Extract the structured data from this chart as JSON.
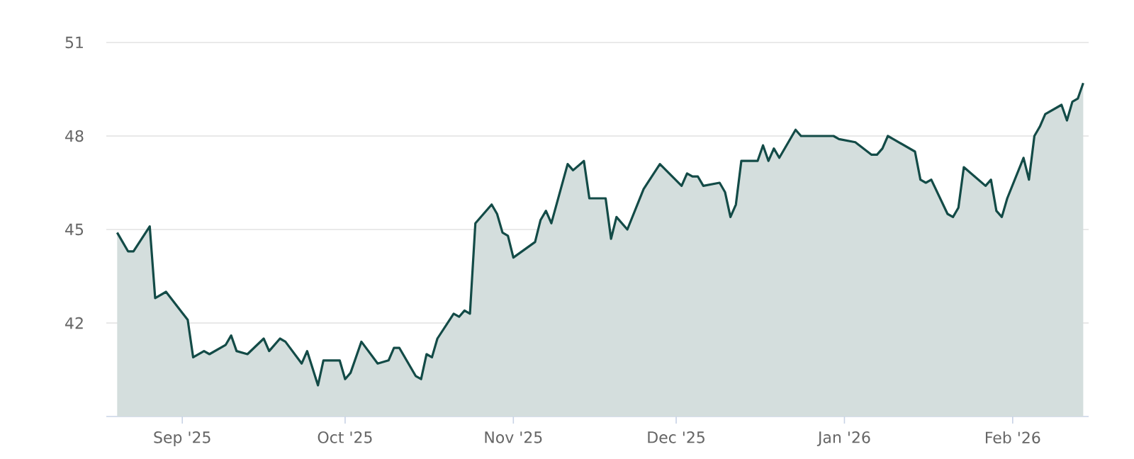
{
  "chart_data": {
    "type": "area",
    "x": [
      "2025-08-20",
      "2025-08-22",
      "2025-08-23",
      "2025-08-26",
      "2025-08-27",
      "2025-08-29",
      "2025-09-02",
      "2025-09-03",
      "2025-09-05",
      "2025-09-06",
      "2025-09-09",
      "2025-09-10",
      "2025-09-11",
      "2025-09-13",
      "2025-09-16",
      "2025-09-17",
      "2025-09-19",
      "2025-09-20",
      "2025-09-23",
      "2025-09-24",
      "2025-09-26",
      "2025-09-27",
      "2025-09-30",
      "2025-10-01",
      "2025-10-02",
      "2025-10-04",
      "2025-10-07",
      "2025-10-09",
      "2025-10-10",
      "2025-10-11",
      "2025-10-14",
      "2025-10-15",
      "2025-10-16",
      "2025-10-17",
      "2025-10-18",
      "2025-10-21",
      "2025-10-22",
      "2025-10-23",
      "2025-10-24",
      "2025-10-25",
      "2025-10-28",
      "2025-10-29",
      "2025-10-30",
      "2025-10-31",
      "2025-11-01",
      "2025-11-05",
      "2025-11-06",
      "2025-11-07",
      "2025-11-08",
      "2025-11-11",
      "2025-11-12",
      "2025-11-14",
      "2025-11-15",
      "2025-11-18",
      "2025-11-19",
      "2025-11-20",
      "2025-11-22",
      "2025-11-25",
      "2025-11-28",
      "2025-12-02",
      "2025-12-03",
      "2025-12-04",
      "2025-12-05",
      "2025-12-06",
      "2025-12-09",
      "2025-12-10",
      "2025-12-11",
      "2025-12-12",
      "2025-12-13",
      "2025-12-16",
      "2025-12-17",
      "2025-12-18",
      "2025-12-19",
      "2025-12-20",
      "2025-12-23",
      "2025-12-24",
      "2025-12-30",
      "2025-12-31",
      "2026-01-03",
      "2026-01-06",
      "2026-01-07",
      "2026-01-08",
      "2026-01-09",
      "2026-01-10",
      "2026-01-14",
      "2026-01-15",
      "2026-01-16",
      "2026-01-17",
      "2026-01-20",
      "2026-01-21",
      "2026-01-22",
      "2026-01-23",
      "2026-01-27",
      "2026-01-28",
      "2026-01-29",
      "2026-01-30",
      "2026-01-31",
      "2026-02-03",
      "2026-02-04",
      "2026-02-05",
      "2026-02-06",
      "2026-02-07",
      "2026-02-10",
      "2026-02-11",
      "2026-02-12",
      "2026-02-13",
      "2026-02-14"
    ],
    "series": [
      {
        "color": "#134b47",
        "values": [
          44.9,
          44.3,
          44.3,
          45.1,
          42.8,
          43.0,
          42.1,
          40.9,
          41.1,
          41.0,
          41.3,
          41.6,
          41.1,
          41.0,
          41.5,
          41.1,
          41.5,
          41.4,
          40.7,
          41.1,
          40.0,
          40.8,
          40.8,
          40.2,
          40.4,
          41.4,
          40.7,
          40.8,
          41.2,
          41.2,
          40.3,
          40.2,
          41.0,
          40.9,
          41.5,
          42.3,
          42.2,
          42.4,
          42.3,
          45.2,
          45.8,
          45.5,
          44.9,
          44.8,
          44.1,
          44.6,
          45.3,
          45.6,
          45.2,
          47.1,
          46.9,
          47.2,
          46.0,
          46.0,
          44.7,
          45.4,
          45.0,
          46.3,
          47.1,
          46.4,
          46.8,
          46.7,
          46.7,
          46.4,
          46.5,
          46.2,
          45.4,
          45.8,
          47.2,
          47.2,
          47.7,
          47.2,
          47.6,
          47.3,
          48.2,
          48.0,
          48.0,
          47.9,
          47.8,
          47.4,
          47.4,
          47.6,
          48.0,
          47.9,
          47.5,
          46.6,
          46.5,
          46.6,
          45.5,
          45.4,
          45.7,
          47.0,
          46.4,
          46.6,
          45.6,
          45.4,
          46.0,
          47.3,
          46.6,
          48.0,
          48.3,
          48.7,
          49.0,
          48.5,
          49.1,
          49.2,
          49.7
        ]
      }
    ],
    "xlim": [
      "2025-08-18",
      "2026-02-15"
    ],
    "xticks": [
      {
        "value": "2025-09-01",
        "label": "Sep '25"
      },
      {
        "value": "2025-10-01",
        "label": "Oct '25"
      },
      {
        "value": "2025-11-01",
        "label": "Nov '25"
      },
      {
        "value": "2025-12-01",
        "label": "Dec '25"
      },
      {
        "value": "2026-01-01",
        "label": "Jan '26"
      },
      {
        "value": "2026-02-01",
        "label": "Feb '26"
      }
    ],
    "ylim": [
      39,
      51
    ],
    "yticks": [
      42,
      45,
      48,
      51
    ],
    "grid": "y",
    "legend": false
  }
}
